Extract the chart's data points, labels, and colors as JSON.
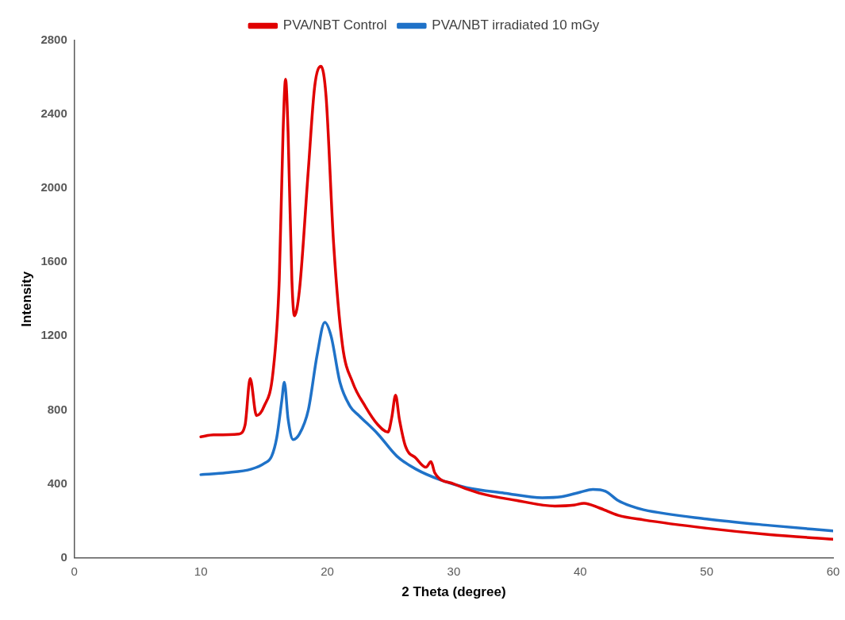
{
  "chart_data": {
    "type": "line",
    "xlabel": "2 Theta (degree)",
    "ylabel": "Intensity",
    "xlim": [
      0,
      60
    ],
    "xticks": [
      0,
      10,
      20,
      30,
      40,
      50,
      60
    ],
    "ylim": [
      0,
      2800
    ],
    "yticks": [
      0,
      400,
      800,
      1200,
      1600,
      2000,
      2400,
      2800
    ],
    "grid": false,
    "legend": "top",
    "marker": "none",
    "line_style": "solid",
    "series": [
      {
        "name": "PVA/NBT Control",
        "color": "#e00000",
        "x": [
          10,
          11,
          13,
          13.5,
          13.9,
          14.4,
          15,
          15.7,
          16.2,
          16.5,
          16.7,
          16.9,
          17.2,
          17.4,
          17.8,
          18.5,
          19,
          19.5,
          19.9,
          20.5,
          21.2,
          22,
          23,
          24,
          24.8,
          25.1,
          25.4,
          25.7,
          26.2,
          27,
          27.8,
          28.2,
          28.5,
          30,
          32,
          35,
          38,
          39.5,
          40.3,
          41.5,
          43,
          45,
          50,
          55,
          60
        ],
        "values": [
          655,
          665,
          670,
          720,
          970,
          770,
          820,
          1000,
          1500,
          2300,
          2590,
          2300,
          1500,
          1310,
          1450,
          2100,
          2550,
          2660,
          2500,
          1700,
          1150,
          950,
          820,
          720,
          680,
          760,
          880,
          750,
          600,
          540,
          490,
          520,
          460,
          400,
          350,
          310,
          280,
          285,
          295,
          270,
          230,
          205,
          160,
          125,
          100
        ]
      },
      {
        "name": "PVA/NBT irradiated 10 mGy",
        "color": "#1f72c8",
        "x": [
          10,
          12,
          14,
          15,
          15.6,
          16,
          16.4,
          16.6,
          16.9,
          17.3,
          17.8,
          18.5,
          19.2,
          19.8,
          20.3,
          21,
          21.8,
          22.5,
          24,
          25.5,
          27,
          29,
          31,
          34,
          37,
          38.5,
          40,
          41,
          42,
          43,
          44,
          45,
          50,
          55,
          60
        ],
        "values": [
          450,
          460,
          480,
          510,
          550,
          650,
          850,
          950,
          750,
          640,
          670,
          800,
          1100,
          1275,
          1200,
          950,
          820,
          770,
          670,
          550,
          480,
          420,
          380,
          350,
          325,
          330,
          355,
          370,
          360,
          310,
          280,
          260,
          210,
          175,
          145
        ]
      }
    ]
  }
}
